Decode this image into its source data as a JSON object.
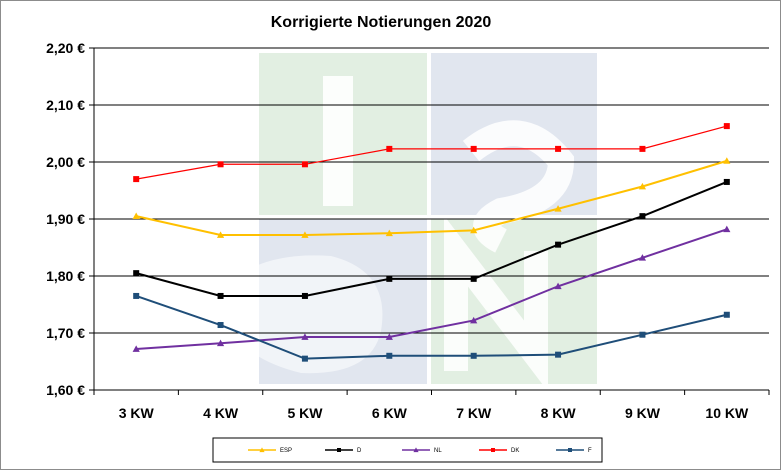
{
  "chart_data": {
    "type": "line",
    "title": "Korrigierte Notierungen 2020",
    "xlabel": "",
    "ylabel": "",
    "categories": [
      "3 KW",
      "4 KW",
      "5 KW",
      "6 KW",
      "7 KW",
      "8 KW",
      "9 KW",
      "10 KW"
    ],
    "ylim": [
      1.6,
      2.2
    ],
    "yticks": [
      "1,60 €",
      "1,70 €",
      "1,80 €",
      "1,90 €",
      "2,00 €",
      "2,10 €",
      "2,20 €"
    ],
    "ytick_values": [
      1.6,
      1.7,
      1.8,
      1.9,
      2.0,
      2.1,
      2.2
    ],
    "grid": true,
    "legend_position": "bottom",
    "series": [
      {
        "name": "ESP",
        "color": "#FFC000",
        "marker": "triangle",
        "values": [
          1.905,
          1.872,
          1.872,
          1.875,
          1.88,
          1.918,
          1.957,
          2.002
        ]
      },
      {
        "name": "D",
        "color": "#000000",
        "marker": "square",
        "values": [
          1.805,
          1.765,
          1.765,
          1.795,
          1.795,
          1.855,
          1.905,
          1.965
        ]
      },
      {
        "name": "NL",
        "color": "#7030A0",
        "marker": "triangle",
        "values": [
          1.672,
          1.682,
          1.693,
          1.693,
          1.722,
          1.782,
          1.832,
          1.882
        ]
      },
      {
        "name": "DK",
        "color": "#FF0000",
        "marker": "square",
        "values": [
          1.97,
          1.996,
          1.996,
          2.023,
          2.023,
          2.023,
          2.023,
          2.063
        ]
      },
      {
        "name": "F",
        "color": "#1F4E79",
        "marker": "square",
        "values": [
          1.765,
          1.714,
          1.655,
          1.66,
          1.66,
          1.662,
          1.697,
          1.732
        ]
      }
    ]
  }
}
